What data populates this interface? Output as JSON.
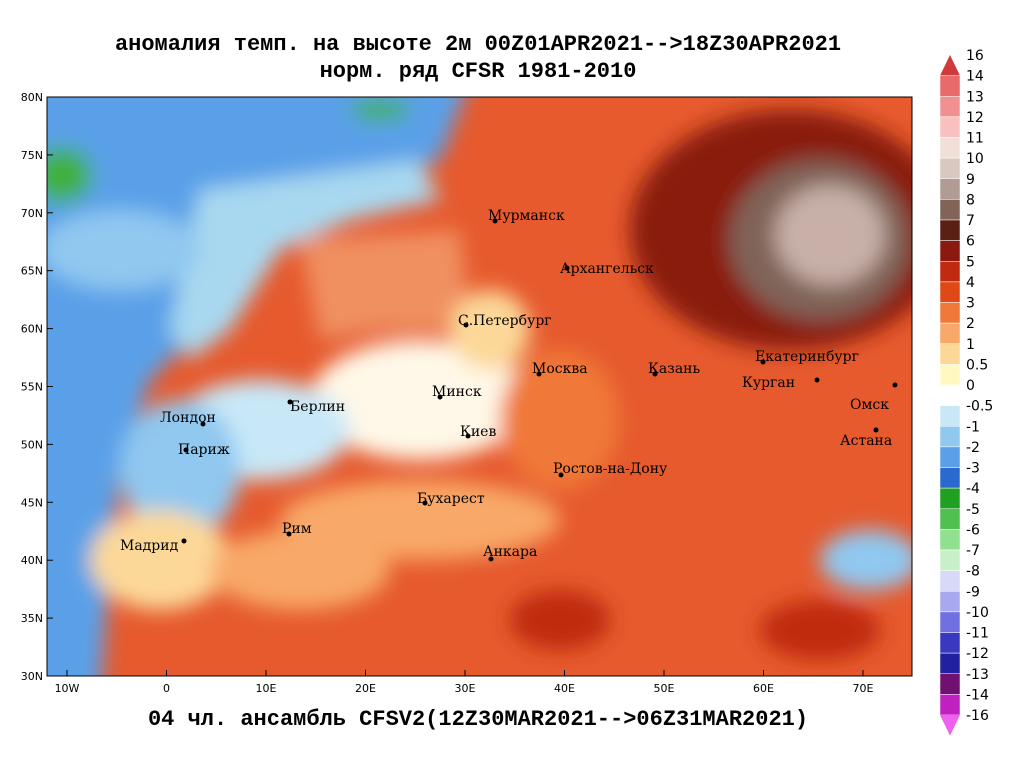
{
  "title": {
    "line1": "аномалия темп. на высоте 2м 00Z01APR2021-->18Z30APR2021",
    "line2": "норм. ряд CFSR 1981-2010"
  },
  "map": {
    "lat_labels": [
      "80N",
      "75N",
      "70N",
      "65N",
      "60N",
      "55N",
      "50N",
      "45N",
      "40N",
      "35N",
      "30N"
    ],
    "lon_labels": [
      "10W",
      "0",
      "10E",
      "20E",
      "30E",
      "40E",
      "50E",
      "60E",
      "70E"
    ],
    "cities": [
      "Мурманск",
      "Архангельск",
      "С.Петербург",
      "Москва",
      "Казань",
      "Екатеринбург",
      "Курган",
      "Омск",
      "Астана",
      "Минск",
      "Берлин",
      "Лондон",
      "Париж",
      "Киев",
      "Ростов-на-Дону",
      "Бухарест",
      "Рим",
      "Мадрид",
      "Анкара"
    ]
  },
  "caption": "04 чл. ансамбль CFSV2(12Z30MAR2021-->06Z31MAR2021)",
  "colorbar": {
    "labels": [
      "16",
      "14",
      "13",
      "12",
      "11",
      "10",
      "9",
      "8",
      "7",
      "6",
      "5",
      "4",
      "3",
      "2",
      "1",
      "0.5",
      "0",
      "-0.5",
      "-1",
      "-2",
      "-3",
      "-4",
      "-5",
      "-6",
      "-7",
      "-8",
      "-9",
      "-10",
      "-11",
      "-12",
      "-13",
      "-14",
      "-16"
    ],
    "colors": [
      "#d03a3a",
      "#e86a6a",
      "#f09090",
      "#f8c0c0",
      "#f0e0d8",
      "#d8c8c0",
      "#b09c94",
      "#806458",
      "#5a2014",
      "#8a1a10",
      "#c02a10",
      "#e04818",
      "#f07838",
      "#f8a868",
      "#fcd898",
      "#fff8c0",
      "#ffffff",
      "#c8e8f8",
      "#90c8f0",
      "#5aa0e8",
      "#2a6ad0",
      "#20a020",
      "#50c050",
      "#90e090",
      "#c8f0c8",
      "#d8d8f8",
      "#a8a8f0",
      "#7070e0",
      "#3838c0",
      "#2020a0",
      "#701070",
      "#c020c0",
      "#f060f0"
    ]
  }
}
